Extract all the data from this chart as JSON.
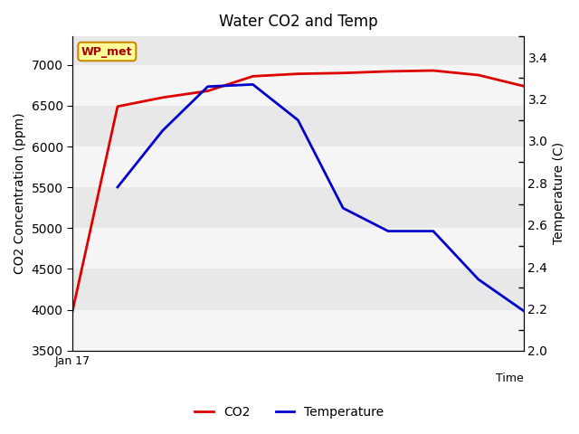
{
  "title": "Water CO2 and Temp",
  "xlabel": "Time",
  "ylabel_left": "CO2 Concentration (ppm)",
  "ylabel_right": "Temperature (C)",
  "x_tick_label": "Jan 17",
  "ylim_left": [
    3500,
    7350
  ],
  "ylim_right": [
    2.0,
    3.5
  ],
  "yticks_left": [
    3500,
    4000,
    4500,
    5000,
    5500,
    6000,
    6500,
    7000
  ],
  "yticks_right": [
    2.0,
    2.2,
    2.4,
    2.6,
    2.8,
    3.0,
    3.2,
    3.4
  ],
  "co2_x": [
    0,
    1,
    2,
    3,
    4,
    5,
    6,
    7,
    8,
    9,
    10
  ],
  "co2_y": [
    3980,
    6490,
    6600,
    6680,
    6860,
    6890,
    6900,
    6920,
    6930,
    6875,
    6740
  ],
  "temp_x": [
    1,
    2,
    3,
    4,
    5,
    6,
    7,
    8,
    9,
    10
  ],
  "temp_y": [
    2.78,
    3.05,
    3.26,
    3.27,
    3.1,
    2.68,
    2.57,
    2.57,
    2.34,
    2.19
  ],
  "co2_color": "#dd0000",
  "temp_color": "#0000cc",
  "co2_linewidth": 2.0,
  "temp_linewidth": 2.0,
  "legend_co2": "CO2",
  "legend_temp": "Temperature",
  "label_text": "WP_met",
  "label_bg": "#ffff99",
  "label_edge": "#cc8800",
  "label_text_color": "#aa0000",
  "plot_bg": "#e8e8e8",
  "figure_bg": "#ffffff",
  "band_color": "#f5f5f5"
}
